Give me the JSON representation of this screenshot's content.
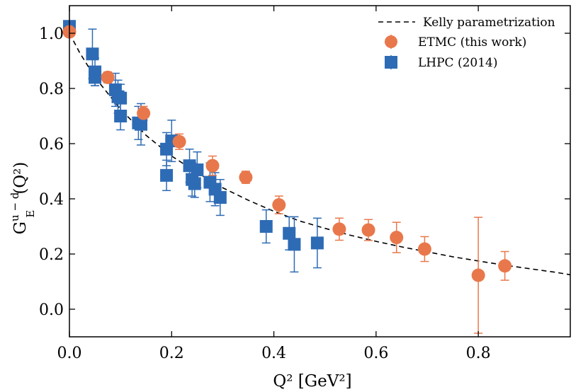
{
  "chart_data": {
    "type": "scatter",
    "xlabel": "Q² [GeV²]",
    "ylabel_main": "G",
    "ylabel_sup": "u − d",
    "ylabel_sub": "E",
    "ylabel_tail": "(Q²)",
    "xlim": [
      0.0,
      0.98
    ],
    "ylim": [
      -0.1,
      1.1
    ],
    "xticks": [
      0.0,
      0.2,
      0.4,
      0.6,
      0.8
    ],
    "xtick_labels": [
      "0.0",
      "0.2",
      "0.4",
      "0.6",
      "0.8"
    ],
    "yticks": [
      0.0,
      0.2,
      0.4,
      0.6,
      0.8,
      1.0
    ],
    "ytick_labels": [
      "0.0",
      "0.2",
      "0.4",
      "0.6",
      "0.8",
      "1.0"
    ],
    "grid": false,
    "legend_position": "top-right",
    "legend": [
      "Kelly parametrization",
      "ETMC (this work)",
      "LHPC (2014)"
    ],
    "colors": {
      "etmc": "#e8784c",
      "lhpc": "#2e6bb5",
      "curve": "#000000"
    },
    "series": [
      {
        "name": "Kelly parametrization",
        "style": "dashed-line",
        "x": [
          0.0,
          0.02,
          0.05,
          0.1,
          0.15,
          0.2,
          0.25,
          0.3,
          0.35,
          0.4,
          0.45,
          0.5,
          0.55,
          0.6,
          0.65,
          0.7,
          0.75,
          0.8,
          0.85,
          0.9,
          0.95,
          0.98
        ],
        "y": [
          1.0,
          0.93,
          0.84,
          0.725,
          0.63,
          0.555,
          0.495,
          0.44,
          0.395,
          0.355,
          0.32,
          0.293,
          0.268,
          0.246,
          0.226,
          0.208,
          0.19,
          0.175,
          0.16,
          0.147,
          0.134,
          0.125
        ]
      },
      {
        "name": "ETMC (this work)",
        "marker": "circle",
        "x": [
          0.0,
          0.075,
          0.145,
          0.215,
          0.28,
          0.345,
          0.41,
          0.528,
          0.585,
          0.64,
          0.695,
          0.8,
          0.852
        ],
        "y": [
          1.005,
          0.84,
          0.71,
          0.607,
          0.52,
          0.478,
          0.378,
          0.29,
          0.287,
          0.26,
          0.218,
          0.123,
          0.157
        ],
        "yerr": [
          0.012,
          0.02,
          0.025,
          0.028,
          0.035,
          0.022,
          0.032,
          0.04,
          0.038,
          0.055,
          0.045,
          0.21,
          0.052
        ]
      },
      {
        "name": "LHPC (2014)",
        "marker": "square",
        "x": [
          0.0,
          0.045,
          0.05,
          0.05,
          0.09,
          0.095,
          0.1,
          0.1,
          0.135,
          0.14,
          0.19,
          0.19,
          0.2,
          0.235,
          0.24,
          0.245,
          0.25,
          0.275,
          0.285,
          0.295,
          0.385,
          0.43,
          0.44,
          0.485
        ],
        "y": [
          1.025,
          0.925,
          0.86,
          0.84,
          0.795,
          0.77,
          0.765,
          0.7,
          0.675,
          0.67,
          0.58,
          0.485,
          0.61,
          0.52,
          0.47,
          0.455,
          0.505,
          0.46,
          0.435,
          0.405,
          0.3,
          0.275,
          0.235,
          0.24
        ],
        "yerr": [
          0.02,
          0.09,
          0.05,
          0.03,
          0.06,
          0.06,
          0.05,
          0.05,
          0.06,
          0.075,
          0.06,
          0.055,
          0.075,
          0.06,
          0.06,
          0.05,
          0.065,
          0.07,
          0.06,
          0.065,
          0.06,
          0.06,
          0.1,
          0.09
        ]
      }
    ]
  }
}
